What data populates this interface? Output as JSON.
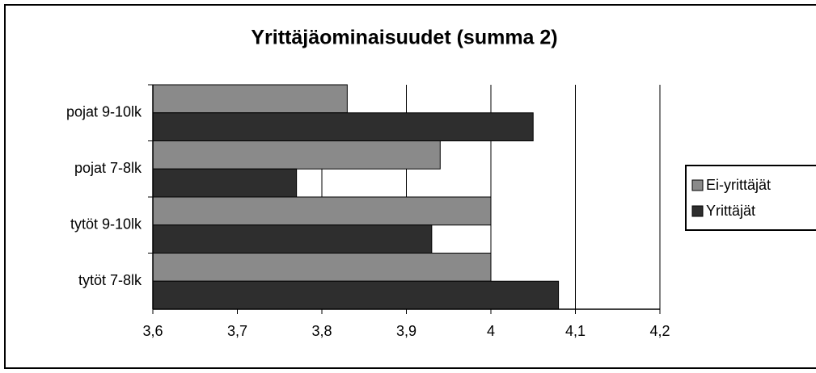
{
  "chart_data": {
    "type": "bar",
    "orientation": "horizontal",
    "title": "Yrittäjäominaisuudet  (summa 2)",
    "categories": [
      "pojat 9-10lk",
      "pojat 7-8lk",
      "tytöt  9-10lk",
      "tytöt 7-8lk"
    ],
    "series": [
      {
        "name": "Ei-yrittäjät",
        "color": "#8a8a8a",
        "values": [
          3.83,
          3.94,
          4.0,
          4.0
        ]
      },
      {
        "name": "Yrittäjät",
        "color": "#2e2e2e",
        "values": [
          4.05,
          3.77,
          3.93,
          4.08
        ]
      }
    ],
    "xlim": [
      3.6,
      4.2
    ],
    "xticks": [
      {
        "value": 3.6,
        "label": "3,6"
      },
      {
        "value": 3.7,
        "label": "3,7"
      },
      {
        "value": 3.8,
        "label": "3,8"
      },
      {
        "value": 3.9,
        "label": "3,9"
      },
      4,
      {
        "value": 4.1,
        "label": "4,1"
      },
      {
        "value": 4.2,
        "label": "4,2"
      }
    ],
    "grid": true,
    "legend": "right"
  }
}
